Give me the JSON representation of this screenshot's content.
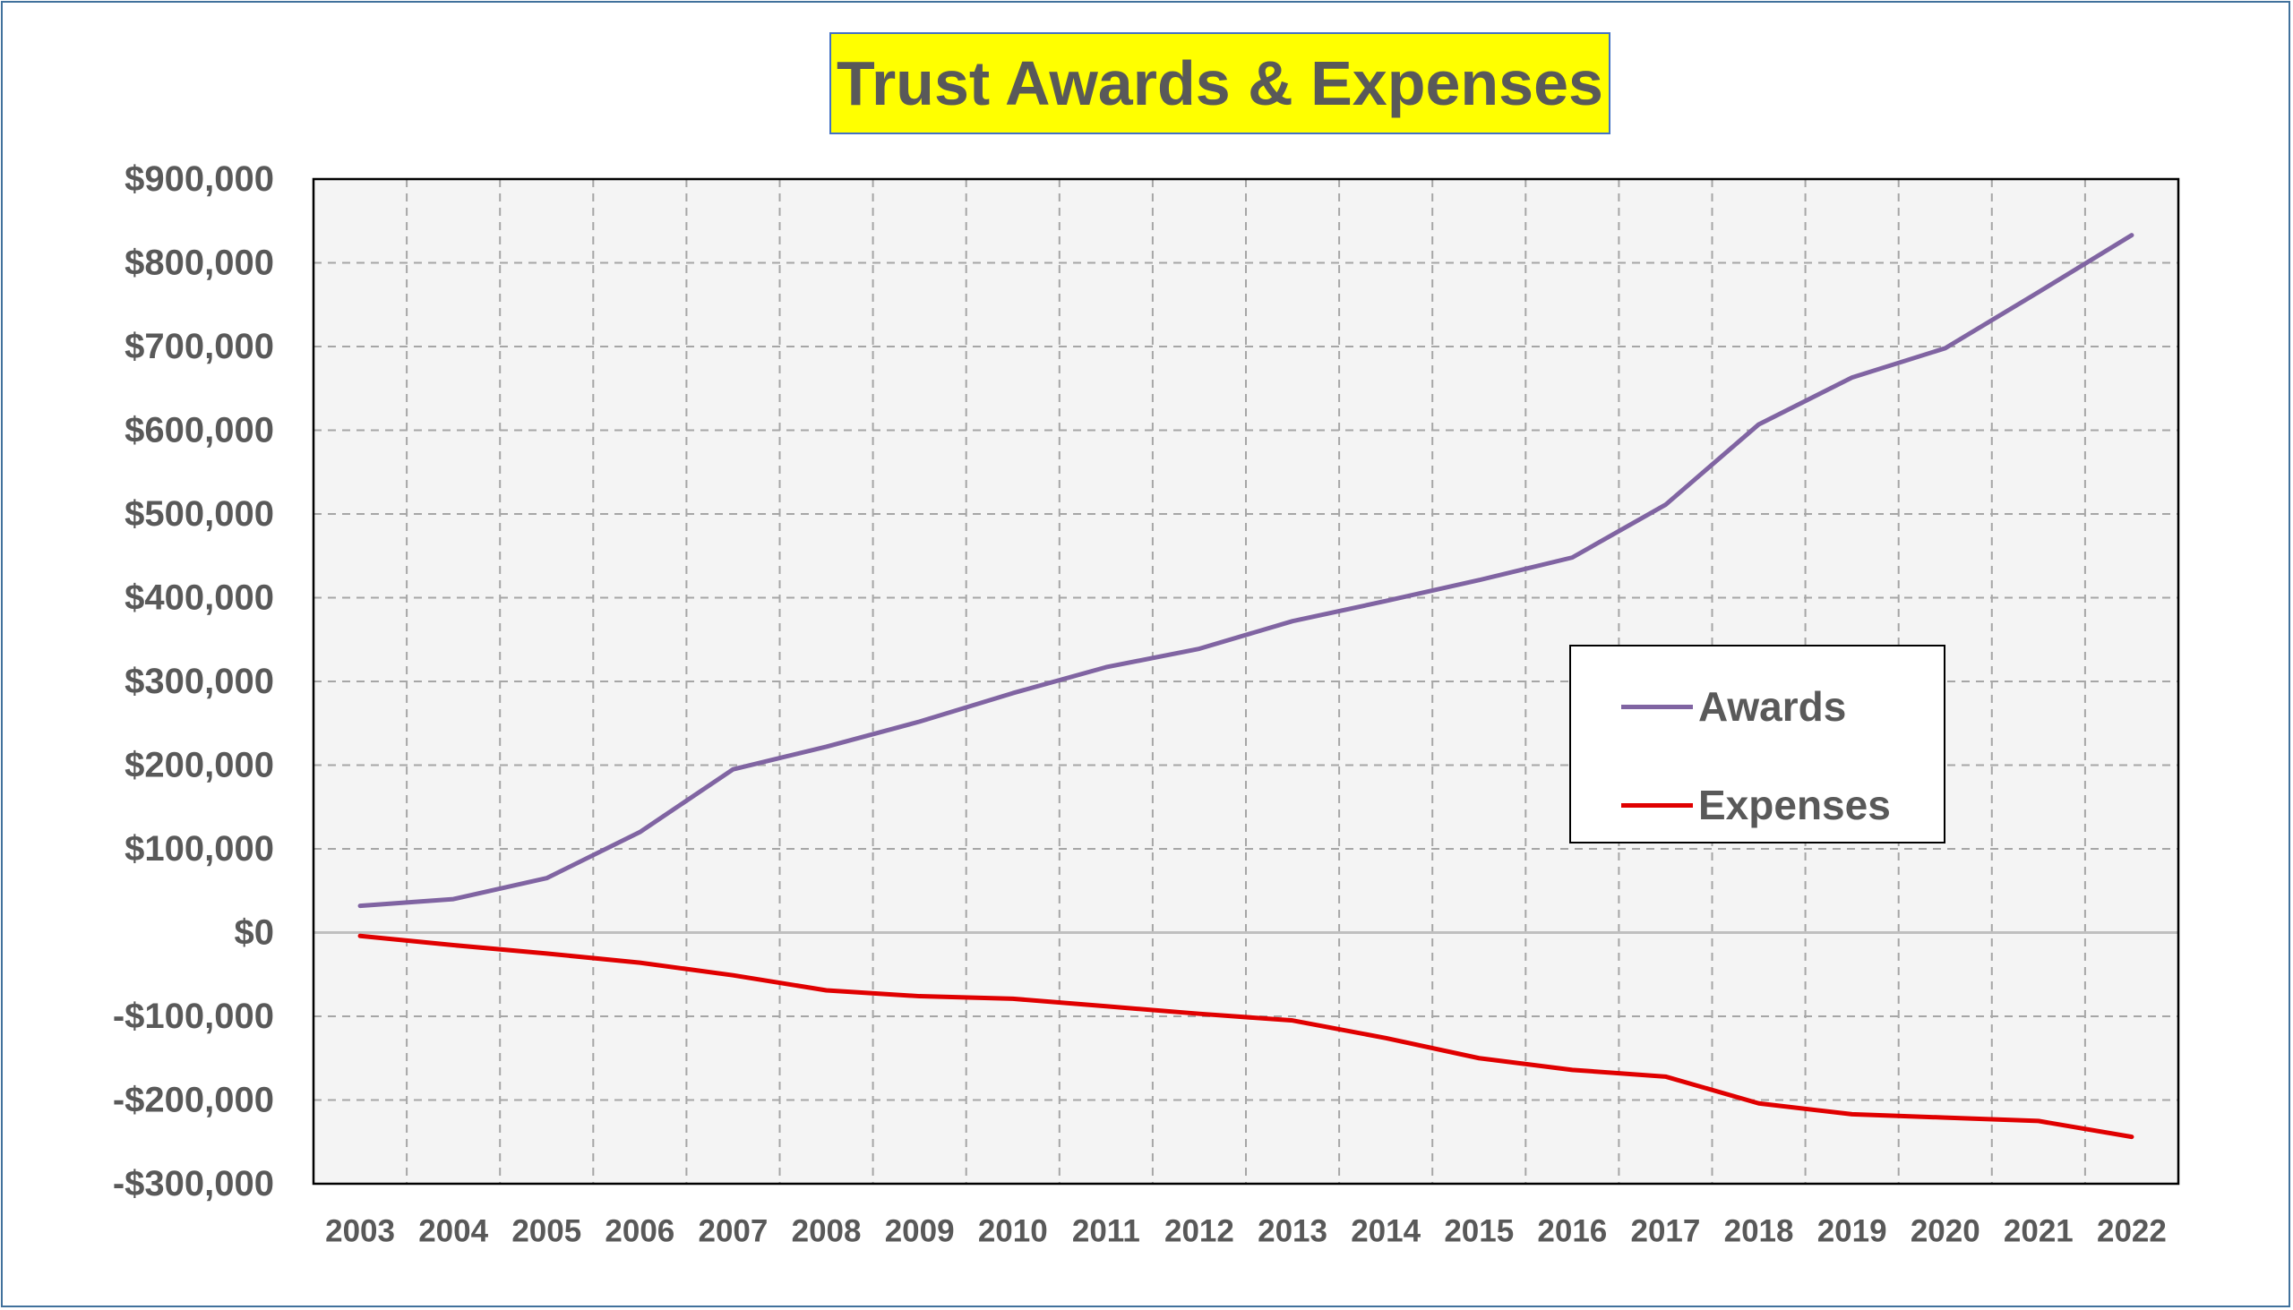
{
  "chart_data": {
    "type": "line",
    "title": "Trust Awards & Expenses",
    "xlabel": "",
    "ylabel": "",
    "x": [
      "2003",
      "2004",
      "2005",
      "2006",
      "2007",
      "2008",
      "2009",
      "2010",
      "2011",
      "2012",
      "2013",
      "2014",
      "2015",
      "2016",
      "2017",
      "2018",
      "2019",
      "2020",
      "2021",
      "2022"
    ],
    "ylim": [
      -300000,
      900000
    ],
    "y_ticks": [
      900000,
      800000,
      700000,
      600000,
      500000,
      400000,
      300000,
      200000,
      100000,
      0,
      -100000,
      -200000,
      -300000
    ],
    "y_tick_labels": [
      "$900,000",
      "$800,000",
      "$700,000",
      "$600,000",
      "$500,000",
      "$400,000",
      "$300,000",
      "$200,000",
      "$100,000",
      "$0",
      "-$100,000",
      "-$200,000",
      "-$300,000"
    ],
    "grid": true,
    "legend_position": "right-center",
    "series": [
      {
        "name": "Awards",
        "color": "#8064a2",
        "values": [
          32000,
          40000,
          65000,
          120000,
          195000,
          222000,
          252000,
          286000,
          317000,
          339000,
          372000,
          396000,
          421000,
          448000,
          511000,
          607000,
          663000,
          698000,
          765000,
          833000
        ]
      },
      {
        "name": "Expenses",
        "color": "#e00000",
        "values": [
          -4000,
          -15000,
          -25000,
          -36000,
          -51000,
          -69000,
          -76000,
          -79000,
          -88000,
          -97000,
          -105000,
          -126000,
          -150000,
          -164000,
          -172000,
          -204000,
          -217000,
          -221000,
          -225000,
          -244000
        ]
      }
    ]
  }
}
